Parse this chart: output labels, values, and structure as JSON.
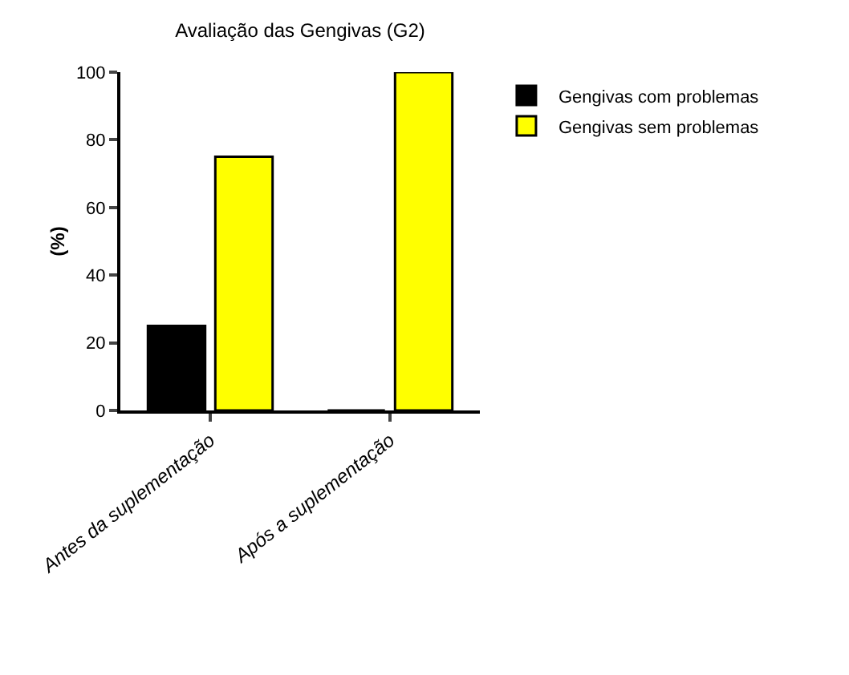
{
  "chart_data": {
    "type": "bar",
    "title": "Avaliação das Gengivas (G2)",
    "ylabel": "(%)",
    "categories": [
      "Antes da suplementação",
      "Após a suplementação"
    ],
    "series": [
      {
        "name": "Gengivas com problemas",
        "color": "#000000",
        "values": [
          25,
          0
        ]
      },
      {
        "name": "Gengivas sem problemas",
        "color": "#ffff00",
        "values": [
          75,
          100
        ]
      }
    ],
    "ylim": [
      0,
      100
    ],
    "yticks": [
      0,
      20,
      40,
      60,
      80,
      100
    ],
    "grid": false,
    "legend": "top right"
  }
}
